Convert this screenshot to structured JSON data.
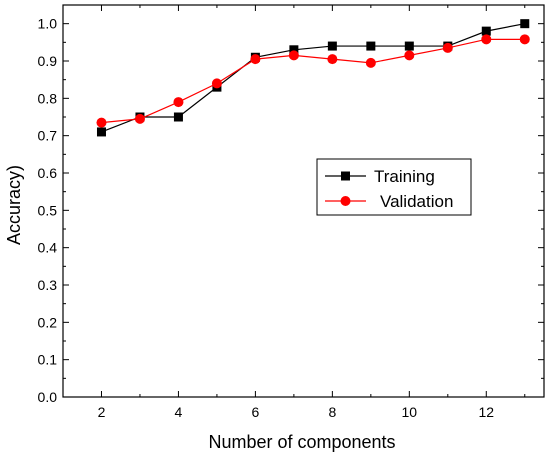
{
  "chart_data": {
    "type": "line",
    "xlabel": "Number of components",
    "ylabel": "Accuracy)",
    "xlim": [
      1,
      13.5
    ],
    "ylim": [
      0.0,
      1.05
    ],
    "x_ticks": [
      "2",
      "4",
      "6",
      "8",
      "10",
      "12"
    ],
    "y_ticks": [
      "0.0",
      "0.1",
      "0.2",
      "0.3",
      "0.4",
      "0.5",
      "0.6",
      "0.7",
      "0.8",
      "0.9",
      "1.0"
    ],
    "x": [
      2,
      3,
      4,
      5,
      6,
      7,
      8,
      9,
      10,
      11,
      12,
      13
    ],
    "series": [
      {
        "name": "Training",
        "marker": "square",
        "color": "#000000",
        "values": [
          0.71,
          0.75,
          0.75,
          0.83,
          0.91,
          0.93,
          0.94,
          0.94,
          0.94,
          0.94,
          0.98,
          1.0
        ]
      },
      {
        "name": "Validation",
        "marker": "circle",
        "color": "#ff0000",
        "values": [
          0.735,
          0.745,
          0.79,
          0.84,
          0.905,
          0.915,
          0.905,
          0.895,
          0.915,
          0.935,
          0.958,
          0.958
        ]
      }
    ],
    "legend_position": "right-middle",
    "grid": false
  }
}
